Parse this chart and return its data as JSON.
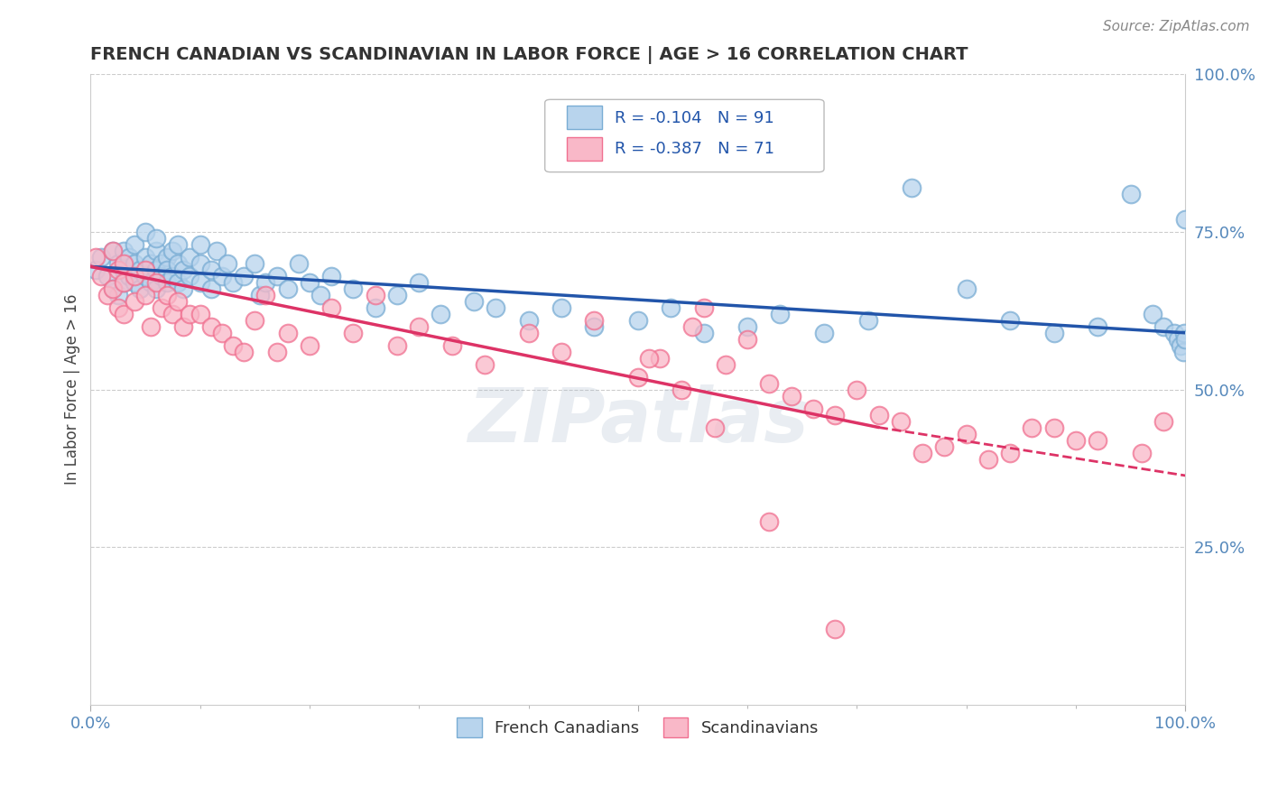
{
  "title": "FRENCH CANADIAN VS SCANDINAVIAN IN LABOR FORCE | AGE > 16 CORRELATION CHART",
  "source_text": "Source: ZipAtlas.com",
  "ylabel": "In Labor Force | Age > 16",
  "xlim": [
    0,
    1
  ],
  "ylim": [
    0,
    1
  ],
  "ytick_labels_right": [
    "25.0%",
    "50.0%",
    "75.0%",
    "100.0%"
  ],
  "ytick_positions_right": [
    0.25,
    0.5,
    0.75,
    1.0
  ],
  "grid_color": "#cccccc",
  "background_color": "#ffffff",
  "blue_edge_color": "#7aadd4",
  "pink_edge_color": "#f07090",
  "blue_fill": "#b8d4ed",
  "pink_fill": "#f9b8c8",
  "legend_R_blue": "R = -0.104",
  "legend_N_blue": "N = 91",
  "legend_R_pink": "R = -0.387",
  "legend_N_pink": "N = 71",
  "legend_label_blue": "French Canadians",
  "legend_label_pink": "Scandinavians",
  "axis_color": "#5588bb",
  "watermark": "ZIPatlas",
  "blue_trend": [
    0.0,
    0.695,
    1.0,
    0.59
  ],
  "pink_trend_solid": [
    0.0,
    0.695,
    0.72,
    0.44
  ],
  "pink_trend_dashed": [
    0.72,
    0.44,
    1.05,
    0.35
  ],
  "blue_scatter_x": [
    0.005,
    0.01,
    0.015,
    0.02,
    0.02,
    0.025,
    0.025,
    0.03,
    0.03,
    0.03,
    0.035,
    0.035,
    0.04,
    0.04,
    0.04,
    0.045,
    0.045,
    0.05,
    0.05,
    0.05,
    0.055,
    0.055,
    0.06,
    0.06,
    0.06,
    0.06,
    0.065,
    0.065,
    0.07,
    0.07,
    0.07,
    0.075,
    0.075,
    0.08,
    0.08,
    0.08,
    0.085,
    0.085,
    0.09,
    0.09,
    0.1,
    0.1,
    0.1,
    0.11,
    0.11,
    0.115,
    0.12,
    0.125,
    0.13,
    0.14,
    0.15,
    0.155,
    0.16,
    0.17,
    0.18,
    0.19,
    0.2,
    0.21,
    0.22,
    0.24,
    0.26,
    0.28,
    0.3,
    0.32,
    0.35,
    0.37,
    0.4,
    0.43,
    0.46,
    0.5,
    0.53,
    0.56,
    0.6,
    0.63,
    0.67,
    0.71,
    0.75,
    0.8,
    0.84,
    0.88,
    0.92,
    0.95,
    0.97,
    0.98,
    0.99,
    0.993,
    0.996,
    0.998,
    0.999,
    0.9995,
    0.9999
  ],
  "blue_scatter_y": [
    0.69,
    0.71,
    0.68,
    0.72,
    0.66,
    0.7,
    0.65,
    0.72,
    0.69,
    0.67,
    0.71,
    0.68,
    0.7,
    0.67,
    0.73,
    0.69,
    0.66,
    0.71,
    0.68,
    0.75,
    0.7,
    0.67,
    0.72,
    0.69,
    0.66,
    0.74,
    0.7,
    0.68,
    0.71,
    0.69,
    0.67,
    0.72,
    0.68,
    0.7,
    0.67,
    0.73,
    0.69,
    0.66,
    0.71,
    0.68,
    0.7,
    0.67,
    0.73,
    0.69,
    0.66,
    0.72,
    0.68,
    0.7,
    0.67,
    0.68,
    0.7,
    0.65,
    0.67,
    0.68,
    0.66,
    0.7,
    0.67,
    0.65,
    0.68,
    0.66,
    0.63,
    0.65,
    0.67,
    0.62,
    0.64,
    0.63,
    0.61,
    0.63,
    0.6,
    0.61,
    0.63,
    0.59,
    0.6,
    0.62,
    0.59,
    0.61,
    0.82,
    0.66,
    0.61,
    0.59,
    0.6,
    0.81,
    0.62,
    0.6,
    0.59,
    0.58,
    0.57,
    0.56,
    0.59,
    0.58,
    0.77
  ],
  "pink_scatter_x": [
    0.005,
    0.01,
    0.015,
    0.02,
    0.02,
    0.025,
    0.025,
    0.03,
    0.03,
    0.03,
    0.04,
    0.04,
    0.05,
    0.05,
    0.055,
    0.06,
    0.065,
    0.07,
    0.075,
    0.08,
    0.085,
    0.09,
    0.1,
    0.11,
    0.12,
    0.13,
    0.14,
    0.15,
    0.16,
    0.17,
    0.18,
    0.2,
    0.22,
    0.24,
    0.26,
    0.28,
    0.3,
    0.33,
    0.36,
    0.4,
    0.43,
    0.46,
    0.5,
    0.52,
    0.55,
    0.58,
    0.62,
    0.66,
    0.7,
    0.74,
    0.78,
    0.82,
    0.86,
    0.9,
    0.56,
    0.6,
    0.64,
    0.68,
    0.72,
    0.76,
    0.8,
    0.84,
    0.88,
    0.92,
    0.96,
    0.98,
    0.51,
    0.54,
    0.57,
    0.62,
    0.68
  ],
  "pink_scatter_y": [
    0.71,
    0.68,
    0.65,
    0.72,
    0.66,
    0.69,
    0.63,
    0.7,
    0.67,
    0.62,
    0.68,
    0.64,
    0.69,
    0.65,
    0.6,
    0.67,
    0.63,
    0.65,
    0.62,
    0.64,
    0.6,
    0.62,
    0.62,
    0.6,
    0.59,
    0.57,
    0.56,
    0.61,
    0.65,
    0.56,
    0.59,
    0.57,
    0.63,
    0.59,
    0.65,
    0.57,
    0.6,
    0.57,
    0.54,
    0.59,
    0.56,
    0.61,
    0.52,
    0.55,
    0.6,
    0.54,
    0.51,
    0.47,
    0.5,
    0.45,
    0.41,
    0.39,
    0.44,
    0.42,
    0.63,
    0.58,
    0.49,
    0.46,
    0.46,
    0.4,
    0.43,
    0.4,
    0.44,
    0.42,
    0.4,
    0.45,
    0.55,
    0.5,
    0.44,
    0.29,
    0.12
  ]
}
